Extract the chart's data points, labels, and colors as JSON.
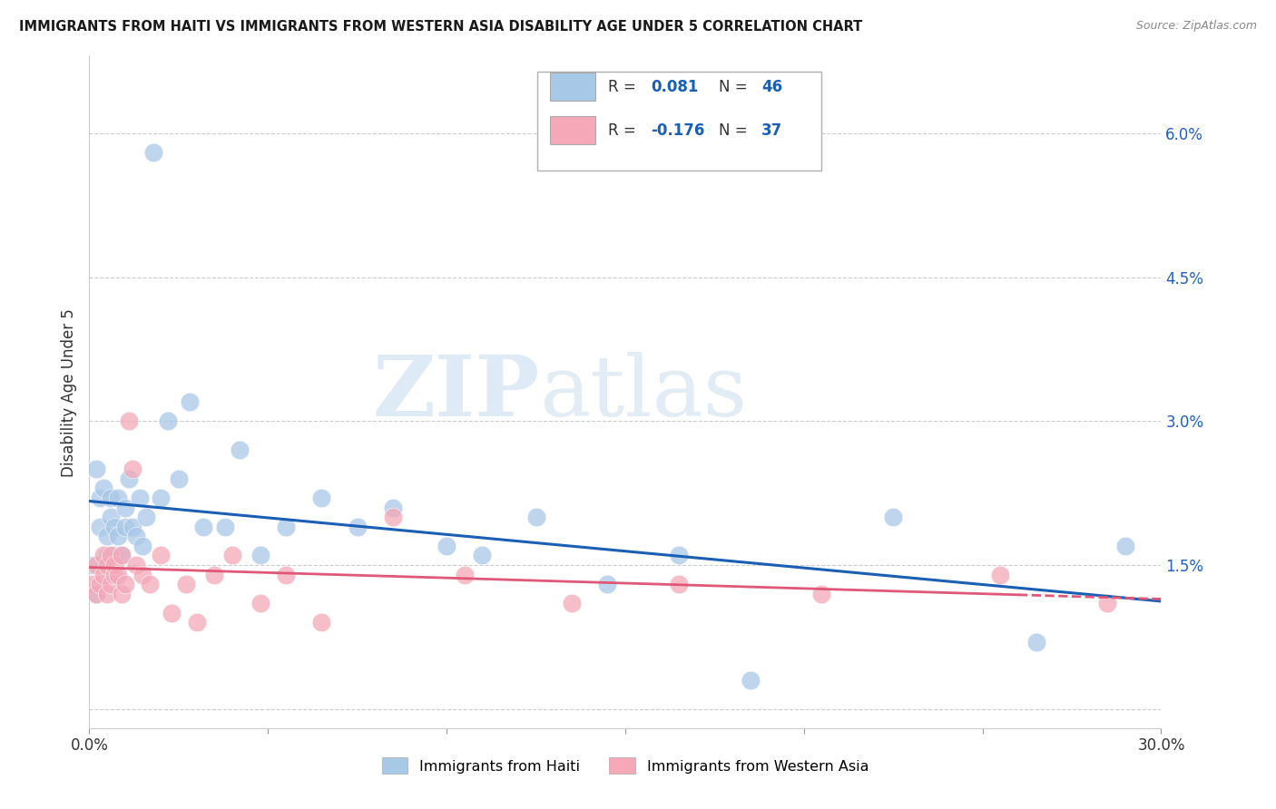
{
  "title": "IMMIGRANTS FROM HAITI VS IMMIGRANTS FROM WESTERN ASIA DISABILITY AGE UNDER 5 CORRELATION CHART",
  "source": "Source: ZipAtlas.com",
  "ylabel": "Disability Age Under 5",
  "haiti_R": 0.081,
  "haiti_N": 46,
  "western_asia_R": -0.176,
  "western_asia_N": 37,
  "haiti_color": "#a8c8e8",
  "western_asia_color": "#f4a8b8",
  "haiti_line_color": "#1a5fb4",
  "western_asia_line_color": "#e05878",
  "watermark_zip": "ZIP",
  "watermark_atlas": "atlas",
  "xmin": 0.0,
  "xmax": 0.3,
  "ymin": -0.002,
  "ymax": 0.068,
  "haiti_x": [
    0.001,
    0.002,
    0.002,
    0.003,
    0.003,
    0.004,
    0.004,
    0.005,
    0.005,
    0.006,
    0.006,
    0.007,
    0.007,
    0.008,
    0.008,
    0.009,
    0.01,
    0.01,
    0.011,
    0.012,
    0.013,
    0.014,
    0.015,
    0.016,
    0.018,
    0.02,
    0.022,
    0.025,
    0.028,
    0.032,
    0.038,
    0.042,
    0.048,
    0.055,
    0.065,
    0.075,
    0.085,
    0.1,
    0.11,
    0.125,
    0.145,
    0.165,
    0.185,
    0.225,
    0.265,
    0.29
  ],
  "haiti_y": [
    0.015,
    0.025,
    0.012,
    0.019,
    0.022,
    0.015,
    0.023,
    0.018,
    0.016,
    0.022,
    0.02,
    0.019,
    0.016,
    0.018,
    0.022,
    0.016,
    0.021,
    0.019,
    0.024,
    0.019,
    0.018,
    0.022,
    0.017,
    0.02,
    0.058,
    0.022,
    0.03,
    0.024,
    0.032,
    0.019,
    0.019,
    0.027,
    0.016,
    0.019,
    0.022,
    0.019,
    0.021,
    0.017,
    0.016,
    0.02,
    0.013,
    0.016,
    0.003,
    0.02,
    0.007,
    0.017
  ],
  "western_asia_x": [
    0.001,
    0.002,
    0.002,
    0.003,
    0.004,
    0.004,
    0.005,
    0.005,
    0.006,
    0.006,
    0.007,
    0.007,
    0.008,
    0.009,
    0.009,
    0.01,
    0.011,
    0.012,
    0.013,
    0.015,
    0.017,
    0.02,
    0.023,
    0.027,
    0.03,
    0.035,
    0.04,
    0.048,
    0.055,
    0.065,
    0.085,
    0.105,
    0.135,
    0.165,
    0.205,
    0.255,
    0.285
  ],
  "western_asia_y": [
    0.013,
    0.015,
    0.012,
    0.013,
    0.014,
    0.016,
    0.015,
    0.012,
    0.013,
    0.016,
    0.014,
    0.015,
    0.014,
    0.012,
    0.016,
    0.013,
    0.03,
    0.025,
    0.015,
    0.014,
    0.013,
    0.016,
    0.01,
    0.013,
    0.009,
    0.014,
    0.016,
    0.011,
    0.014,
    0.009,
    0.02,
    0.014,
    0.011,
    0.013,
    0.012,
    0.014,
    0.011
  ]
}
